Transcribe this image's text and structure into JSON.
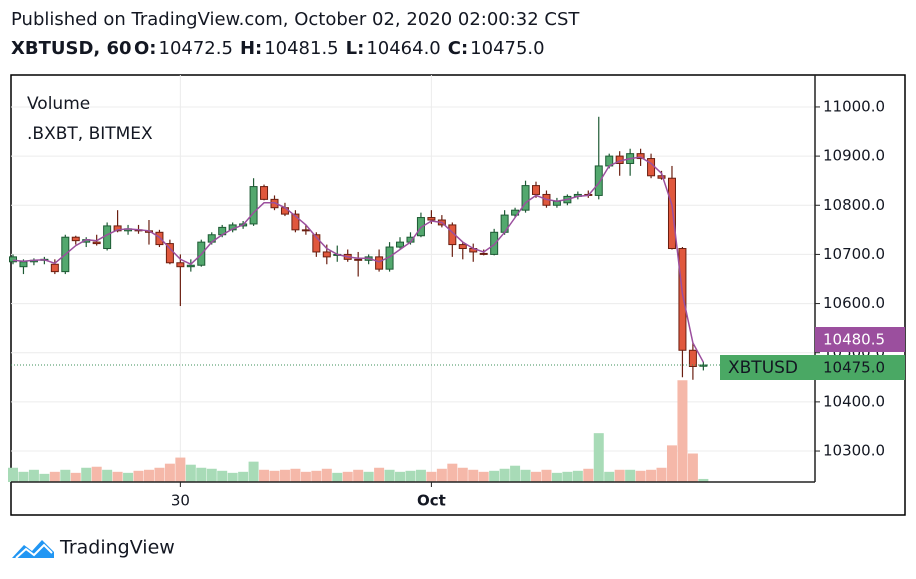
{
  "header": {
    "published": "Published on TradingView.com, October 02, 2020 02:00:32 CST",
    "symbol": "XBTUSD, 60",
    "ohlc": [
      {
        "key": "O:",
        "value": "10472.5"
      },
      {
        "key": "H:",
        "value": "10481.5"
      },
      {
        "key": "L:",
        "value": "10464.0"
      },
      {
        "key": "C:",
        "value": "10475.0"
      }
    ]
  },
  "chart_data": {
    "type": "candlestick",
    "legend": [
      "Volume",
      ".BXBT, BITMEX"
    ],
    "categories": [
      null,
      null,
      null,
      null,
      null,
      null,
      null,
      null,
      null,
      null,
      null,
      null,
      null,
      null,
      null,
      null,
      "30",
      null,
      null,
      null,
      null,
      null,
      null,
      null,
      null,
      null,
      null,
      null,
      null,
      null,
      null,
      null,
      null,
      null,
      null,
      null,
      null,
      null,
      null,
      null,
      "Oct",
      null,
      null,
      null,
      null,
      null,
      null,
      null,
      null,
      null,
      null,
      null,
      null,
      null,
      null,
      null,
      null,
      null,
      null,
      null,
      null,
      null,
      null,
      null,
      null,
      null,
      null
    ],
    "open": [
      10685,
      10675,
      10685,
      10688,
      10680,
      10665,
      10735,
      10725,
      10725,
      10712,
      10758,
      10748,
      10750,
      10748,
      10745,
      10722,
      10683,
      10675,
      10678,
      10725,
      10740,
      10750,
      10758,
      10762,
      10838,
      10812,
      10795,
      10782,
      10750,
      10740,
      10705,
      10698,
      10700,
      10690,
      10688,
      10695,
      10670,
      10715,
      10725,
      10738,
      10775,
      10770,
      10760,
      10720,
      10712,
      10702,
      10700,
      10745,
      10780,
      10790,
      10840,
      10822,
      10800,
      10805,
      10818,
      10822,
      10820,
      10880,
      10900,
      10885,
      10905,
      10895,
      10860,
      10855,
      10712,
      10505,
      10472.5
    ],
    "high": [
      10700,
      10690,
      10692,
      10695,
      10690,
      10740,
      10738,
      10735,
      10740,
      10765,
      10790,
      10760,
      10760,
      10770,
      10750,
      10730,
      10700,
      10690,
      10730,
      10745,
      10760,
      10765,
      10768,
      10855,
      10842,
      10820,
      10805,
      10790,
      10760,
      10745,
      10720,
      10718,
      10710,
      10705,
      10700,
      10710,
      10725,
      10735,
      10745,
      10785,
      10790,
      10780,
      10765,
      10725,
      10722,
      10710,
      10752,
      10790,
      10795,
      10850,
      10848,
      10830,
      10815,
      10822,
      10828,
      10830,
      10980,
      10905,
      10910,
      10915,
      10915,
      10905,
      10870,
      10880,
      10715,
      10520,
      10481.5
    ],
    "low": [
      10680,
      10660,
      10678,
      10680,
      10660,
      10660,
      10720,
      10715,
      10718,
      10708,
      10745,
      10740,
      10742,
      10720,
      10715,
      10680,
      10595,
      10665,
      10675,
      10720,
      10735,
      10745,
      10752,
      10758,
      10810,
      10790,
      10778,
      10745,
      10740,
      10695,
      10680,
      10685,
      10685,
      10655,
      10680,
      10665,
      10665,
      10712,
      10720,
      10735,
      10762,
      10755,
      10695,
      10690,
      10685,
      10698,
      10698,
      10740,
      10775,
      10785,
      10815,
      10795,
      10795,
      10800,
      10812,
      10815,
      10812,
      10875,
      10860,
      10860,
      10880,
      10855,
      10852,
      10710,
      10450,
      10445,
      10464
    ],
    "close": [
      10695,
      10685,
      10688,
      10690,
      10665,
      10735,
      10728,
      10730,
      10722,
      10758,
      10748,
      10752,
      10748,
      10745,
      10720,
      10683,
      10675,
      10678,
      10725,
      10740,
      10755,
      10760,
      10762,
      10838,
      10812,
      10795,
      10782,
      10750,
      10748,
      10705,
      10695,
      10700,
      10690,
      10688,
      10695,
      10670,
      10715,
      10725,
      10735,
      10775,
      10770,
      10760,
      10720,
      10712,
      10705,
      10700,
      10745,
      10780,
      10790,
      10840,
      10822,
      10800,
      10808,
      10818,
      10822,
      10820,
      10880,
      10900,
      10885,
      10905,
      10895,
      10860,
      10855,
      10712,
      10505,
      10472,
      10475
    ],
    "volume": [
      14,
      10,
      12,
      8,
      10,
      12,
      9,
      14,
      15,
      12,
      10,
      9,
      11,
      12,
      14,
      18,
      24,
      17,
      14,
      13,
      11,
      9,
      10,
      20,
      12,
      11,
      12,
      13,
      10,
      11,
      13,
      9,
      10,
      12,
      10,
      14,
      12,
      10,
      11,
      12,
      10,
      13,
      18,
      14,
      12,
      10,
      11,
      13,
      16,
      12,
      10,
      12,
      9,
      10,
      11,
      13,
      48,
      10,
      12,
      12,
      11,
      12,
      14,
      36,
      100,
      28,
      3
    ],
    "ma": [
      10688,
      10686,
      10688,
      10689,
      10682,
      10700,
      10718,
      10730,
      10728,
      10740,
      10750,
      10752,
      10750,
      10748,
      10735,
      10712,
      10690,
      10680,
      10700,
      10725,
      10740,
      10752,
      10760,
      10785,
      10805,
      10805,
      10795,
      10778,
      10760,
      10735,
      10712,
      10700,
      10695,
      10692,
      10692,
      10685,
      10695,
      10710,
      10725,
      10755,
      10768,
      10765,
      10745,
      10725,
      10712,
      10705,
      10720,
      10745,
      10775,
      10805,
      10820,
      10812,
      10808,
      10812,
      10818,
      10820,
      10845,
      10880,
      10890,
      10895,
      10898,
      10885,
      10865,
      10800,
      10620,
      10520,
      10480.5
    ],
    "ma_color": "#9b4f9e",
    "up_color": "#53a86e",
    "down_color": "#e0583d",
    "up_volume_color": "#a8dbb7",
    "down_volume_color": "#f5b8a9",
    "ylim": [
      10237,
      11065
    ],
    "volume_lim": [
      0,
      400
    ],
    "yticks": [
      {
        "value": 10300,
        "label": "10300.0"
      },
      {
        "value": 10400,
        "label": "10400.0"
      },
      {
        "value": 10500,
        "label": "10500.0"
      },
      {
        "value": 10600,
        "label": "10600.0"
      },
      {
        "value": 10700,
        "label": "10700.0"
      },
      {
        "value": 10800,
        "label": "10800.0"
      },
      {
        "value": 10900,
        "label": "10900.0"
      },
      {
        "value": 11000,
        "label": "11000.0"
      }
    ],
    "grid": true,
    "ma_label": "10480.5",
    "symbol_label": "XBTUSD",
    "last_label": "10475.0"
  },
  "footer": {
    "brand": "TradingView"
  }
}
